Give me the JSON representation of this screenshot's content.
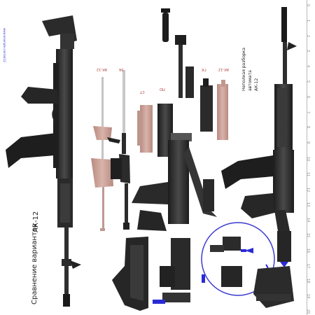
{
  "caption": {
    "title_line1": "Сравнение вариантов",
    "title_line2": "АК-12",
    "right_title_line1": "Неполная разборка",
    "right_title_line2": "автомата",
    "right_title_line3": "АК-12"
  },
  "part_labels": [
    "АК-12",
    "ЗА",
    "СТ",
    "ПО",
    "ГК"
  ],
  "ruler": [
    "0",
    "1",
    "2",
    "3",
    "4",
    "5",
    "6",
    "7",
    "8",
    "9",
    "10",
    "11",
    "12",
    "13",
    "14",
    "15",
    "16",
    "17",
    "18",
    "19",
    "20"
  ],
  "side_link": "www.example.com/ak12",
  "colors": {
    "gun": "#2e2e2e",
    "part": "#c9a39a",
    "accent_blue": "#2a2ad6",
    "circle": "#3a3ad0"
  },
  "icons": {
    "arrows": "blue-direction-arrow",
    "detail_circle": "magnifier-circle"
  }
}
